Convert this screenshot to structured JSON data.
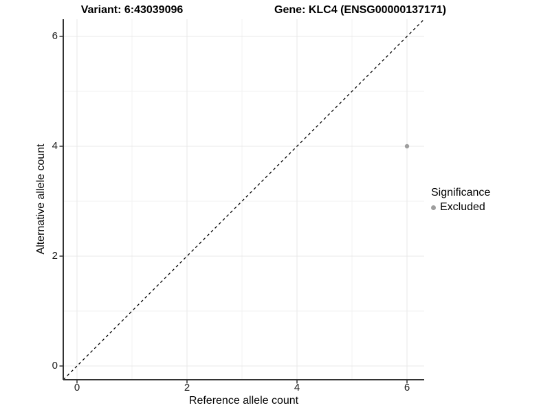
{
  "titles": {
    "variant": "Variant: 6:43039096",
    "gene": "Gene: KLC4 (ENSG00000137171)"
  },
  "axes": {
    "x": {
      "label": "Reference allele count",
      "tick_labels": [
        "0",
        "2",
        "4",
        "6"
      ]
    },
    "y": {
      "label": "Alternative allele count",
      "tick_labels": [
        "0",
        "2",
        "4",
        "6"
      ]
    }
  },
  "legend": {
    "title": "Significance",
    "items": [
      {
        "label": "Excluded",
        "color": "#9e9e9e"
      }
    ]
  },
  "colors": {
    "grid_major": "#e8e8e8",
    "grid_minor": "#f2f2f2",
    "axis_line": "#333333",
    "point": "#9e9e9e",
    "identity_line": "#000000",
    "background": "#ffffff"
  },
  "chart_data": {
    "type": "scatter",
    "title_left": "Variant: 6:43039096",
    "title_right": "Gene: KLC4 (ENSG00000137171)",
    "xlabel": "Reference allele count",
    "ylabel": "Alternative allele count",
    "xlim": [
      -0.25,
      6.56
    ],
    "ylim": [
      -0.25,
      6.56
    ],
    "x_ticks": [
      0,
      2,
      4,
      6
    ],
    "y_ticks": [
      0,
      2,
      4,
      6
    ],
    "grid": "major and minor, 1-unit spacing",
    "legend_position": "right",
    "series": [
      {
        "name": "Excluded",
        "color": "#9e9e9e",
        "points": [
          [
            6,
            4
          ]
        ]
      }
    ],
    "reference_line": {
      "kind": "identity y=x",
      "style": "dashed",
      "color": "#000000"
    }
  }
}
